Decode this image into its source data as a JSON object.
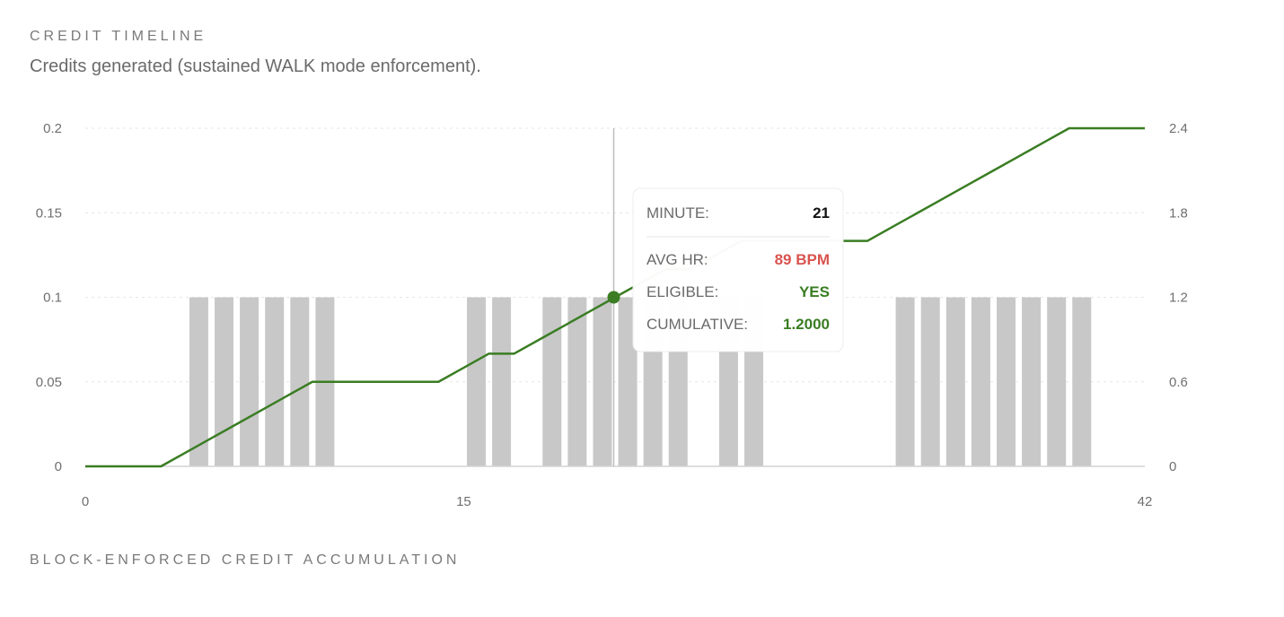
{
  "header": {
    "title": "CREDIT TIMELINE",
    "subtitle": "Credits generated (sustained WALK mode enforcement)."
  },
  "footer": {
    "title": "BLOCK-ENFORCED CREDIT ACCUMULATION"
  },
  "colors": {
    "bar": "#c8c8c8",
    "line": "#3a7d23",
    "hr": "#d9534f",
    "eligible": "#3a7d23",
    "grid": "#e6e6e6"
  },
  "chart_data": {
    "type": "bar+line",
    "x_ticks": [
      0,
      15,
      42
    ],
    "xlim": [
      0,
      42
    ],
    "ylim_left": [
      0,
      0.2
    ],
    "ylim_right": [
      0,
      2.4
    ],
    "left_ticks": [
      "0",
      "0.05",
      "0.1",
      "0.15",
      "0.2"
    ],
    "right_ticks": [
      "0",
      "0.6",
      "1.2",
      "1.8",
      "2.4"
    ],
    "grid": true,
    "bars": {
      "axis": "left",
      "x": [
        4,
        5,
        6,
        7,
        8,
        9,
        15,
        16,
        18,
        19,
        20,
        21,
        22,
        23,
        25,
        26,
        32,
        33,
        34,
        35,
        36,
        37,
        38,
        39
      ],
      "values": [
        0.1,
        0.1,
        0.1,
        0.1,
        0.1,
        0.1,
        0.1,
        0.1,
        0.1,
        0.1,
        0.1,
        0.1,
        0.1,
        0.1,
        0.1,
        0.1,
        0.1,
        0.1,
        0.1,
        0.1,
        0.1,
        0.1,
        0.1,
        0.1
      ]
    },
    "line": {
      "axis": "right",
      "points": [
        [
          0,
          0
        ],
        [
          3,
          0
        ],
        [
          4,
          0.1
        ],
        [
          5,
          0.2
        ],
        [
          6,
          0.3
        ],
        [
          7,
          0.4
        ],
        [
          8,
          0.5
        ],
        [
          9,
          0.6
        ],
        [
          14,
          0.6
        ],
        [
          15,
          0.7
        ],
        [
          16,
          0.8
        ],
        [
          17,
          0.8
        ],
        [
          18,
          0.9
        ],
        [
          19,
          1.0
        ],
        [
          20,
          1.1
        ],
        [
          21,
          1.2
        ],
        [
          22,
          1.3
        ],
        [
          23,
          1.4
        ],
        [
          24,
          1.4
        ],
        [
          25,
          1.5
        ],
        [
          26,
          1.6
        ],
        [
          31,
          1.6
        ],
        [
          32,
          1.7
        ],
        [
          33,
          1.8
        ],
        [
          34,
          1.9
        ],
        [
          35,
          2.0
        ],
        [
          36,
          2.1
        ],
        [
          37,
          2.2
        ],
        [
          38,
          2.3
        ],
        [
          39,
          2.4
        ],
        [
          42,
          2.4
        ]
      ]
    },
    "tooltip": {
      "minute": 21,
      "cumulative_value": 1.2,
      "rows": [
        {
          "label": "MINUTE:",
          "value": "21",
          "color": "#111111"
        },
        {
          "label": "AVG HR:",
          "value": "89 BPM",
          "color": "#d9534f"
        },
        {
          "label": "ELIGIBLE:",
          "value": "YES",
          "color": "#3a7d23"
        },
        {
          "label": "CUMULATIVE:",
          "value": "1.2000",
          "color": "#3a7d23"
        }
      ]
    }
  }
}
